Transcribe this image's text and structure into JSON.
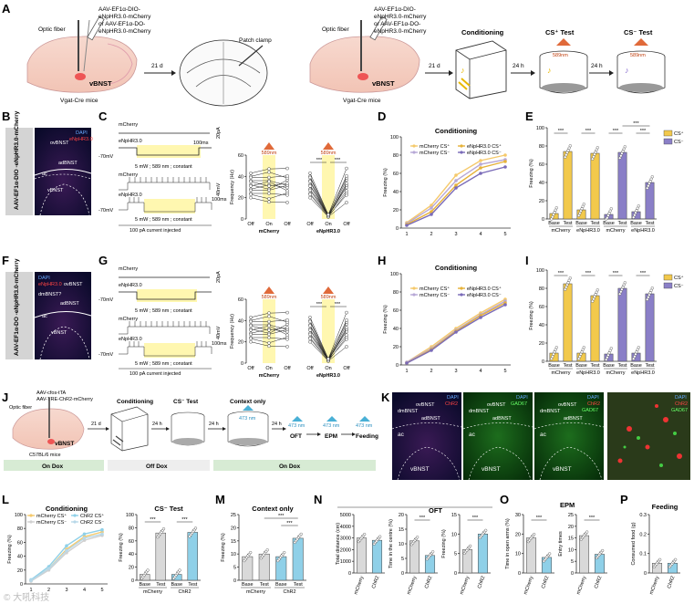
{
  "panels": {
    "A": "A",
    "B": "B",
    "C": "C",
    "D": "D",
    "E": "E",
    "F": "F",
    "G": "G",
    "H": "H",
    "I": "I",
    "J": "J",
    "K": "K",
    "L": "L",
    "M": "M",
    "N": "N",
    "O": "O",
    "P": "P"
  },
  "schematic": {
    "optic_fiber": "Optic fiber",
    "virus_a1": "AAV-EF1α-DIO-",
    "virus_a2": "eNpHR3.0-mCherry",
    "virus_a3": "or AAV-EF1α-DO-",
    "virus_a4": "eNpHR3.0-mCherry",
    "vbnst": "vBNST",
    "mice": "Vgat-Cre mice",
    "days21": "21 d",
    "patch": "Patch clamp",
    "virus_b3": "or AAV-EF1α-DO-",
    "conditioning": "Conditioning",
    "cs_plus_test": "CS⁺ Test",
    "cs_minus_test": "CS⁻ Test",
    "h24": "24 h",
    "nm589": "589nm"
  },
  "histology": {
    "side_b": "AAV-EF1α-DIO -eNpHR3.0-mCherry",
    "side_f": "AAV-EF1α-DO -eNpHR3.0-mCherry",
    "dapi": "DAPI",
    "hr": "eNpHR3.0",
    "ovbnst": "ovBNST",
    "adbnst": "adBNST",
    "dmbnst": "dmBNST?",
    "ac": "ac",
    "vbnst": "vBNST"
  },
  "ephys": {
    "mcherry": "mCherry",
    "enphr": "eNpHR3.0",
    "mv70": "-70mV",
    "stim": "5 mW ; 589 nm ; constant",
    "current": "100 pA current injected",
    "scale_ms": "100ms",
    "scale_pa": "20pA",
    "scale_mv": "40mV",
    "ylabel": "Frequency (Hz)",
    "off": "Off",
    "on": "On",
    "nm589": "589nm",
    "group_mcherry": "mCherry",
    "group_enphr": "eNpHR3.0",
    "sig": "***"
  },
  "conditioning_plot": {
    "title": "Conditioning",
    "ylabel": "Freezing (%)",
    "legend": [
      "mCherry CS⁺",
      "mCherry CS⁻",
      "eNpHR3.0 CS⁺",
      "eNpHR3.0 CS⁻"
    ]
  },
  "freezing_bar": {
    "ylabel": "Freezing (%)",
    "base": "Base",
    "test": "Test",
    "mcherry": "mCherry",
    "enphr": "eNpHR3.0",
    "cs_plus": "CS⁺",
    "cs_minus": "CS⁻",
    "sig": "***"
  },
  "timeline_j": {
    "optic_fiber": "Optic fiber",
    "virus1": "AAV-cfos-tTA",
    "virus2": "AAV-TRE-ChR2-mCherry",
    "vbnst": "vBNST",
    "mice": "C57BL/6 mice",
    "d21": "21 d",
    "h24": "24 h",
    "conditioning": "Conditioning",
    "cs_minus_test": "CS⁻ Test",
    "context_only": "Context only",
    "nm473": "473 nm",
    "oft": "OFT",
    "epm": "EPM",
    "feeding": "Feeding",
    "on_dox": "On Dox",
    "off_dox": "Off Dox"
  },
  "k_panel": {
    "dapi": "DAPI",
    "chr2": "ChR2",
    "gad67": "GAD67",
    "ovbnst": "ovBNST",
    "adbnst": "adBNST",
    "dmbnst": "dmBNST",
    "ac": "ac",
    "vbnst": "vBNST"
  },
  "bottom": {
    "l_title": "Conditioning",
    "l_legend": [
      "mCherry CS⁺",
      "mCherry CS⁻",
      "ChR2 CS⁺",
      "ChR2 CS⁻"
    ],
    "l_test_title": "CS⁻ Test",
    "m_title": "Context only",
    "oft": "OFT",
    "epm": "EPM",
    "feeding": "Feeding",
    "freezing": "Freezing (%)",
    "total_distance": "Total distance (cm)",
    "time_center": "Time in the centre (%)",
    "time_open": "Time in open arms (%)",
    "entry_times": "Entry times",
    "consumed": "Consumed food (g)",
    "mcherry": "mCherry",
    "chr2": "ChR2",
    "base": "Base",
    "test": "Test",
    "sig": "***",
    "watermark": "© 大吼科技"
  },
  "colors": {
    "csplus": "#f2c94c",
    "csminus": "#8a7fc7",
    "mch_plus": "#f5c96b",
    "mch_minus": "#b7a8d6",
    "enp_plus": "#e6b23a",
    "enp_minus": "#7a6bb8",
    "chr2": "#8fd0e8",
    "grey": "#d9d9d9",
    "dox": "#d7ebd4"
  },
  "chart_data": [
    {
      "id": "D",
      "type": "line",
      "title": "Conditioning",
      "xlabel": "",
      "ylabel": "Freezing (%)",
      "x": [
        1,
        2,
        3,
        4,
        5
      ],
      "ylim": [
        0,
        100
      ],
      "yticks": [
        0,
        20,
        40,
        60,
        80,
        100
      ],
      "series": [
        {
          "name": "mCherry CS⁺",
          "values": [
            6,
            25,
            58,
            74,
            80
          ]
        },
        {
          "name": "mCherry CS⁻",
          "values": [
            5,
            22,
            52,
            70,
            75
          ]
        },
        {
          "name": "eNpHR3.0 CS⁺",
          "values": [
            4,
            18,
            47,
            66,
            73
          ]
        },
        {
          "name": "eNpHR3.0 CS⁻",
          "values": [
            3,
            15,
            44,
            60,
            67
          ]
        }
      ]
    },
    {
      "id": "E",
      "type": "bar",
      "ylabel": "Freezing (%)",
      "ylim": [
        0,
        100
      ],
      "yticks": [
        0,
        20,
        40,
        60,
        80,
        100
      ],
      "categories": [
        "mCherry Base CS⁺",
        "mCherry Test CS⁺",
        "eNpHR3.0 Base CS⁺",
        "eNpHR3.0 Test CS⁺",
        "mCherry Base CS⁻",
        "mCherry Test CS⁻",
        "eNpHR3.0 Base CS⁻",
        "eNpHR3.0 Test CS⁻"
      ],
      "values": [
        6,
        74,
        10,
        72,
        5,
        73,
        8,
        40
      ]
    },
    {
      "id": "H",
      "type": "line",
      "title": "Conditioning",
      "ylabel": "Freezing (%)",
      "x": [
        1,
        2,
        3,
        4,
        5
      ],
      "ylim": [
        0,
        100
      ],
      "yticks": [
        0,
        20,
        40,
        60,
        80,
        100
      ],
      "series": [
        {
          "name": "mCherry CS⁺",
          "values": [
            3,
            20,
            40,
            57,
            72
          ]
        },
        {
          "name": "mCherry CS⁻",
          "values": [
            3,
            18,
            38,
            55,
            70
          ]
        },
        {
          "name": "eNpHR3.0 CS⁺",
          "values": [
            2,
            17,
            37,
            54,
            68
          ]
        },
        {
          "name": "eNpHR3.0 CS⁻",
          "values": [
            2,
            16,
            36,
            52,
            66
          ]
        }
      ]
    },
    {
      "id": "I",
      "type": "bar",
      "ylabel": "Freezing (%)",
      "ylim": [
        0,
        100
      ],
      "yticks": [
        0,
        20,
        40,
        60,
        80,
        100
      ],
      "categories": [
        "mCherry Base CS⁺",
        "mCherry Test CS⁺",
        "eNpHR3.0 Base CS⁺",
        "eNpHR3.0 Test CS⁺",
        "mCherry Base CS⁻",
        "mCherry Test CS⁻",
        "eNpHR3.0 Base CS⁻",
        "eNpHR3.0 Test CS⁻"
      ],
      "values": [
        9,
        85,
        9,
        72,
        8,
        80,
        9,
        74
      ]
    },
    {
      "id": "L",
      "type": "line",
      "title": "Conditioning",
      "ylabel": "Freezing (%)",
      "x": [
        1,
        2,
        3,
        4,
        5
      ],
      "ylim": [
        0,
        100
      ],
      "yticks": [
        0,
        20,
        40,
        60,
        80,
        100
      ],
      "series": [
        {
          "name": "mCherry CS⁺",
          "values": [
            5,
            22,
            50,
            68,
            75
          ]
        },
        {
          "name": "mCherry CS⁻",
          "values": [
            4,
            20,
            45,
            63,
            70
          ]
        },
        {
          "name": "ChR2 CS⁺",
          "values": [
            6,
            25,
            55,
            72,
            78
          ]
        },
        {
          "name": "ChR2 CS⁻",
          "values": [
            5,
            22,
            48,
            66,
            72
          ]
        }
      ]
    },
    {
      "id": "L2",
      "type": "bar",
      "title": "CS⁻ Test",
      "ylabel": "Freezing (%)",
      "ylim": [
        0,
        100
      ],
      "yticks": [
        0,
        20,
        40,
        60,
        80,
        100
      ],
      "categories": [
        "mCherry Base",
        "mCherry Test",
        "ChR2 Base",
        "ChR2 Test"
      ],
      "values": [
        9,
        72,
        9,
        73
      ]
    },
    {
      "id": "M",
      "type": "bar",
      "title": "Context only",
      "ylabel": "Freezing (%)",
      "ylim": [
        0,
        25
      ],
      "yticks": [
        0,
        5,
        10,
        15,
        20,
        25
      ],
      "categories": [
        "mCherry Base",
        "mCherry Test",
        "ChR2 Base",
        "ChR2 Test"
      ],
      "values": [
        9,
        10,
        9,
        16
      ]
    },
    {
      "id": "N1",
      "type": "bar",
      "ylabel": "Total distance (cm)",
      "ylim": [
        0,
        5000
      ],
      "yticks": [
        0,
        1000,
        2000,
        3000,
        4000,
        5000
      ],
      "categories": [
        "mCherry",
        "ChR2"
      ],
      "values": [
        3000,
        2800
      ]
    },
    {
      "id": "N2",
      "type": "bar",
      "ylabel": "Time in the centre (%)",
      "ylim": [
        0,
        20
      ],
      "yticks": [
        0,
        5,
        10,
        15,
        20
      ],
      "categories": [
        "mCherry",
        "ChR2"
      ],
      "values": [
        11,
        6
      ]
    },
    {
      "id": "N3",
      "type": "bar",
      "ylabel": "Freezing (%)",
      "ylim": [
        0,
        15
      ],
      "yticks": [
        0,
        5,
        10,
        15
      ],
      "categories": [
        "mCherry",
        "ChR2"
      ],
      "values": [
        6,
        10
      ]
    },
    {
      "id": "O1",
      "type": "bar",
      "ylabel": "Time in open arms (%)",
      "ylim": [
        0,
        30
      ],
      "yticks": [
        0,
        10,
        20,
        30
      ],
      "categories": [
        "mCherry",
        "ChR2"
      ],
      "values": [
        18,
        8
      ]
    },
    {
      "id": "O2",
      "type": "bar",
      "ylabel": "Entry times",
      "ylim": [
        0,
        25
      ],
      "yticks": [
        0,
        5,
        10,
        15,
        20,
        25
      ],
      "categories": [
        "mCherry",
        "ChR2"
      ],
      "values": [
        16,
        8
      ]
    },
    {
      "id": "P",
      "type": "bar",
      "title": "Feeding",
      "ylabel": "Consumed food (g)",
      "ylim": [
        0,
        0.3
      ],
      "yticks": [
        0,
        0.1,
        0.2,
        0.3
      ],
      "categories": [
        "mCherry",
        "ChR2"
      ],
      "values": [
        0.05,
        0.05
      ]
    }
  ]
}
